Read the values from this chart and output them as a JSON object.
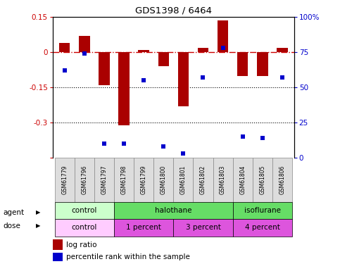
{
  "title": "GDS1398 / 6464",
  "samples": [
    "GSM61779",
    "GSM61796",
    "GSM61797",
    "GSM61798",
    "GSM61799",
    "GSM61800",
    "GSM61801",
    "GSM61802",
    "GSM61803",
    "GSM61804",
    "GSM61805",
    "GSM61806"
  ],
  "log_ratio": [
    0.04,
    0.07,
    -0.14,
    -0.31,
    0.01,
    -0.06,
    -0.23,
    0.02,
    0.135,
    -0.1,
    -0.1,
    0.02
  ],
  "percentile_rank": [
    62,
    74,
    10,
    10,
    55,
    8,
    3,
    57,
    78,
    15,
    14,
    57
  ],
  "ylim_left": [
    -0.45,
    0.15
  ],
  "ylim_right": [
    0,
    100
  ],
  "yticks_left": [
    -0.45,
    -0.3,
    -0.15,
    0.0,
    0.15
  ],
  "yticks_right": [
    0,
    25,
    50,
    75,
    100
  ],
  "ytick_labels_left": [
    "",
    "-0.3",
    "-0.15",
    "0",
    "0.15"
  ],
  "ytick_labels_right": [
    "0",
    "25",
    "50",
    "75",
    "100%"
  ],
  "bar_color": "#aa0000",
  "dot_color": "#0000cc",
  "dashed_line_color": "#cc0000",
  "agent_groups": [
    {
      "label": "control",
      "start": 0,
      "end": 3,
      "color": "#ccffcc"
    },
    {
      "label": "halothane",
      "start": 3,
      "end": 9,
      "color": "#66dd66"
    },
    {
      "label": "isoflurane",
      "start": 9,
      "end": 12,
      "color": "#66dd66"
    }
  ],
  "dose_groups": [
    {
      "label": "control",
      "start": 0,
      "end": 3,
      "color": "#ffccff"
    },
    {
      "label": "1 percent",
      "start": 3,
      "end": 6,
      "color": "#dd55dd"
    },
    {
      "label": "3 percent",
      "start": 6,
      "end": 9,
      "color": "#dd55dd"
    },
    {
      "label": "4 percent",
      "start": 9,
      "end": 12,
      "color": "#dd55dd"
    }
  ],
  "legend_bar_label": "log ratio",
  "legend_dot_label": "percentile rank within the sample",
  "bar_width": 0.55,
  "tick_label_color_left": "#cc0000",
  "tick_label_color_right": "#0000cc",
  "cell_bg": "#dddddd",
  "cell_edge": "#888888"
}
